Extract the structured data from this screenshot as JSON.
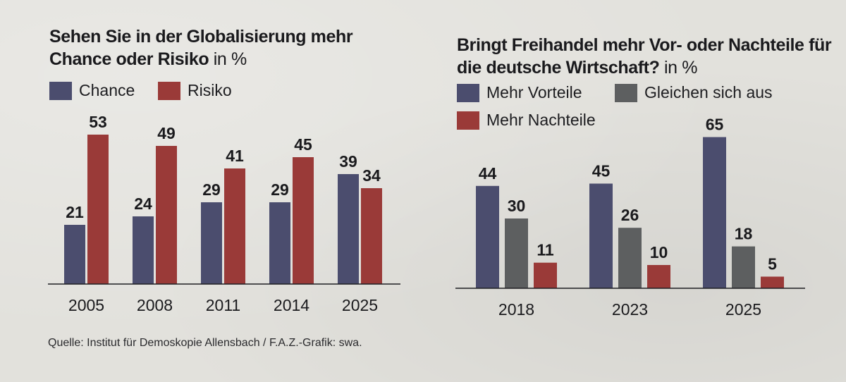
{
  "colors": {
    "chance": "#4b4d6e",
    "risiko": "#9a3a38",
    "vorteile": "#4b4d6e",
    "gleichen": "#5d5f60",
    "nachteile": "#9a3a38"
  },
  "left": {
    "title_main": "Sehen Sie in der Globalisierung mehr Chance oder Risiko",
    "title_unit": " in %",
    "legend": [
      "Chance",
      "Risiko"
    ]
  },
  "right": {
    "title_main": "Bringt Freihandel mehr Vor- oder Nachteile für die deutsche Wirtschaft?",
    "title_unit": " in %",
    "legend": [
      "Mehr Vorteile",
      "Gleichen sich aus",
      "Mehr Nachteile"
    ]
  },
  "source": "Quelle: Institut für Demoskopie Allensbach  / F.A.Z.-Grafik: swa.",
  "chart_data": [
    {
      "type": "bar",
      "title": "Sehen Sie in der Globalisierung mehr Chance oder Risiko in %",
      "categories": [
        "2005",
        "2008",
        "2011",
        "2014",
        "2025"
      ],
      "series": [
        {
          "name": "Chance",
          "values": [
            21,
            24,
            29,
            29,
            39
          ]
        },
        {
          "name": "Risiko",
          "values": [
            53,
            49,
            41,
            45,
            34
          ]
        }
      ],
      "xlabel": "",
      "ylabel": "%",
      "ylim": [
        0,
        60
      ]
    },
    {
      "type": "bar",
      "title": "Bringt Freihandel mehr Vor- oder Nachteile für die deutsche Wirtschaft? in %",
      "categories": [
        "2018",
        "2023",
        "2025"
      ],
      "series": [
        {
          "name": "Mehr Vorteile",
          "values": [
            44,
            45,
            65
          ]
        },
        {
          "name": "Gleichen sich aus",
          "values": [
            30,
            26,
            18
          ]
        },
        {
          "name": "Mehr Nachteile",
          "values": [
            11,
            10,
            5
          ]
        }
      ],
      "xlabel": "",
      "ylabel": "%",
      "ylim": [
        0,
        70
      ]
    }
  ]
}
